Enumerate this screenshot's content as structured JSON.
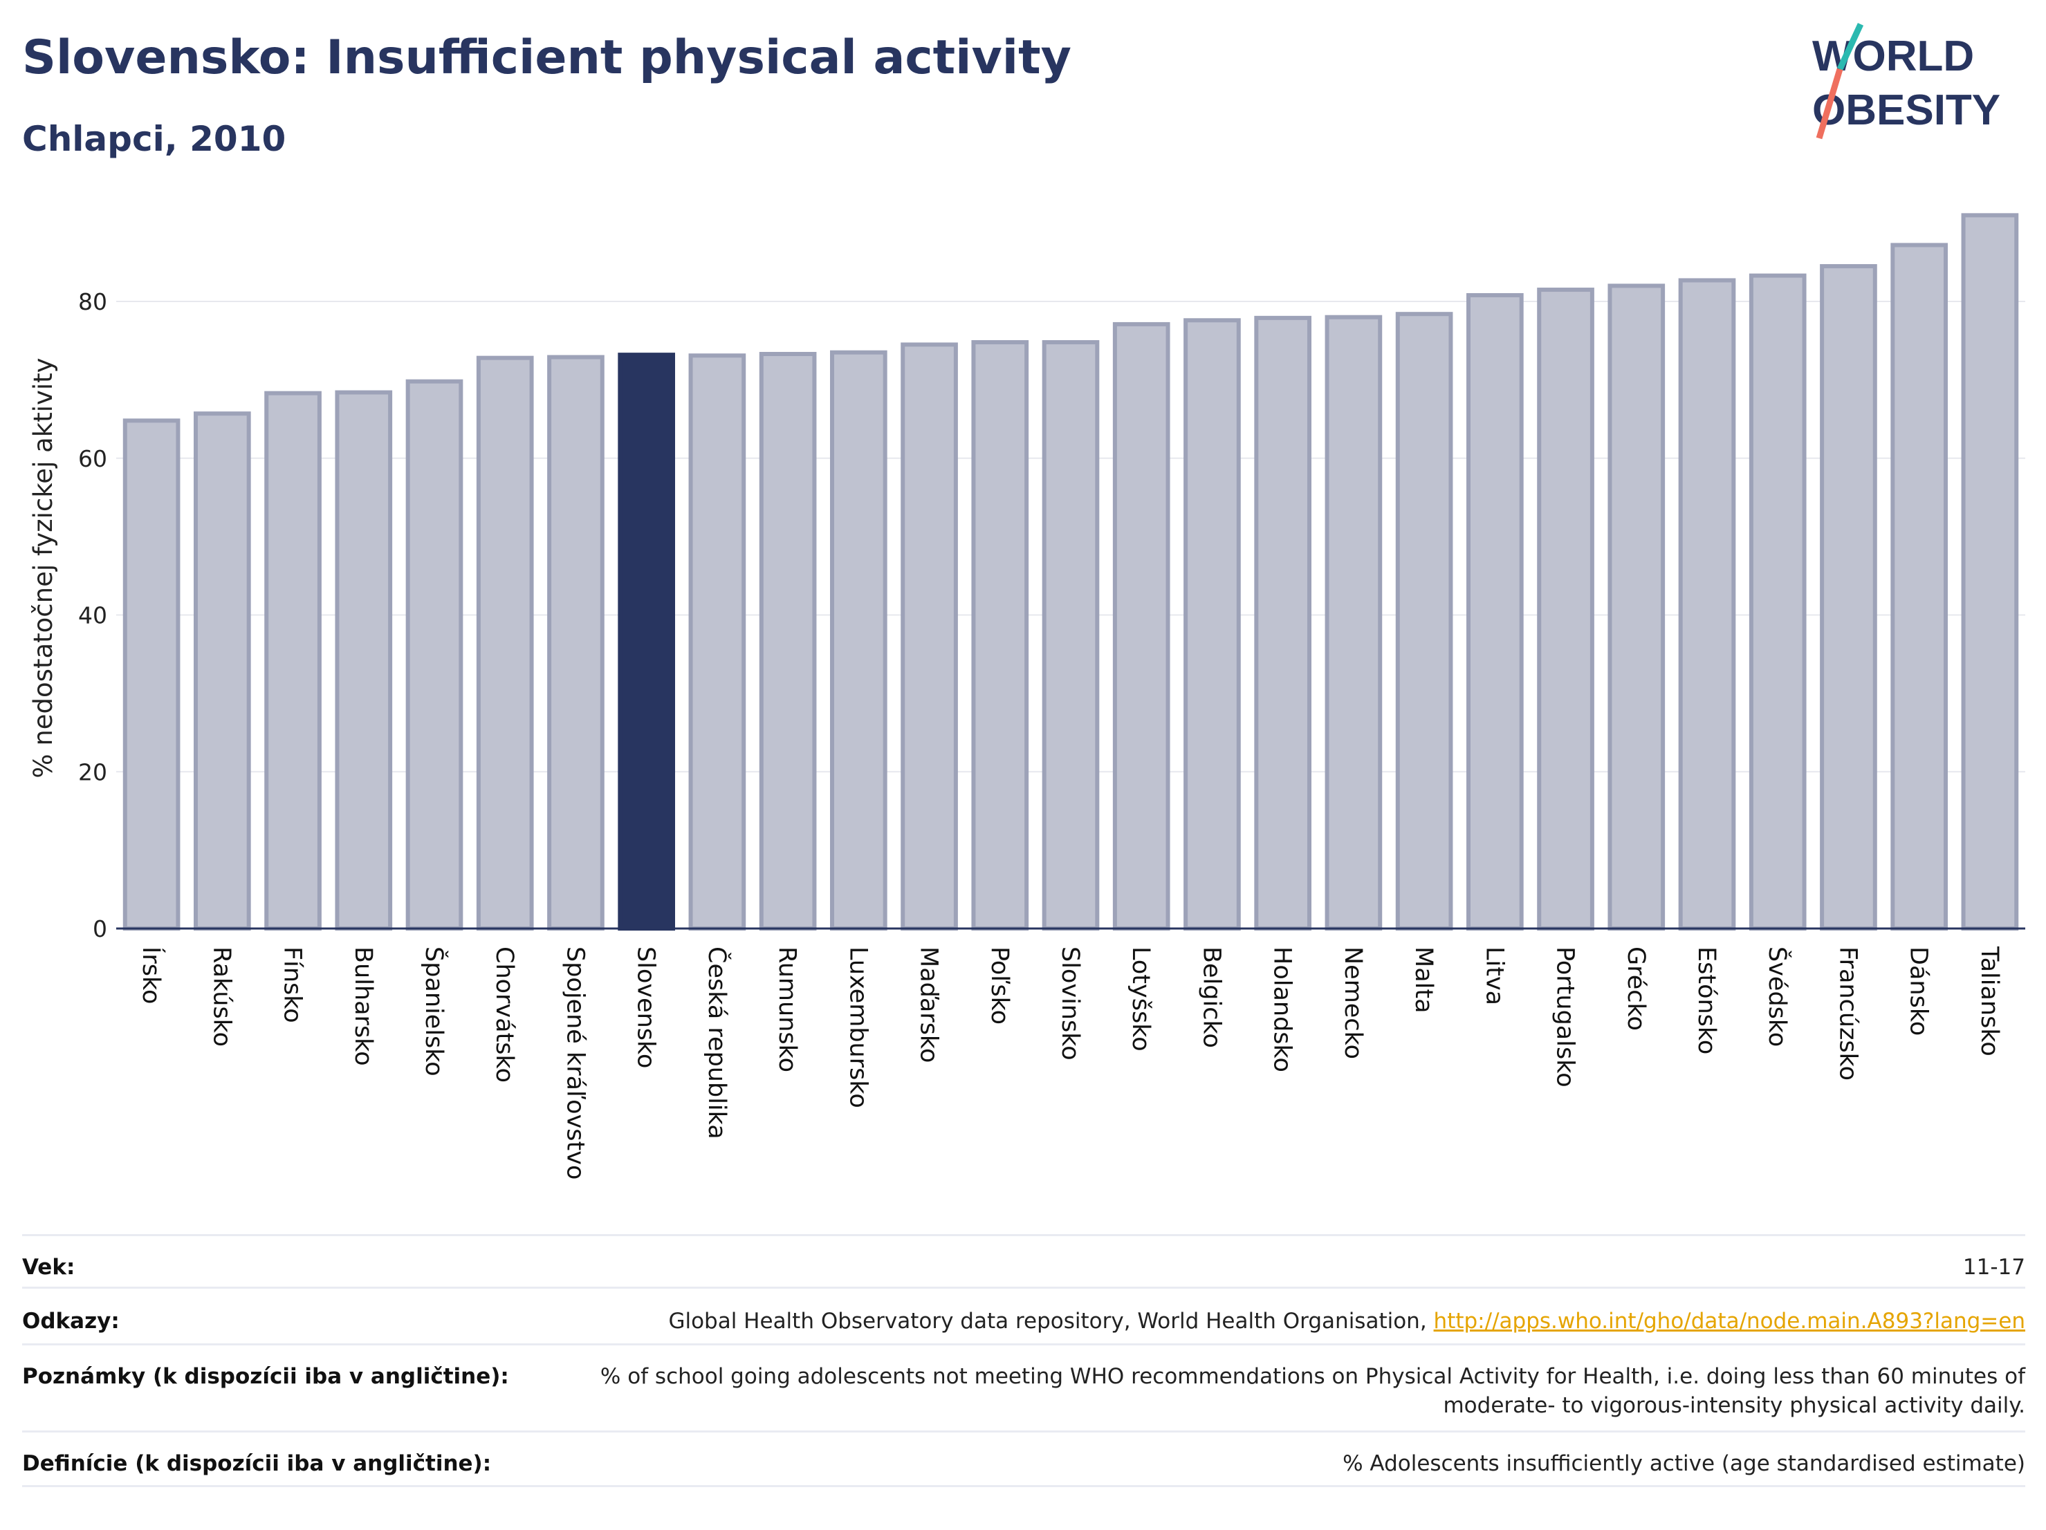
{
  "header": {
    "title": "Slovensko: Insufficient physical activity",
    "subtitle": "Chlapci, 2010"
  },
  "logo": {
    "line1": "WORLD",
    "line2": "OBESITY"
  },
  "colors": {
    "navy": "#283560",
    "bar": "#bfc2d0",
    "bar_border": "#9da2b8",
    "highlight": "#283560",
    "link": "#e5a400",
    "teal": "#2bb9b0",
    "coral": "#ef6f5e"
  },
  "chart_data": {
    "type": "bar",
    "ylabel": "% nedostatočnej fyzickej aktivity",
    "ylim": [
      0,
      92
    ],
    "yticks": [
      0,
      20,
      40,
      60,
      80
    ],
    "grid": true,
    "highlight": "Slovensko",
    "categories": [
      "Írsko",
      "Rakúsko",
      "Fínsko",
      "Bulharsko",
      "Španielsko",
      "Chorvátsko",
      "Spojené kráľovstvo",
      "Slovensko",
      "Česká republika",
      "Rumunsko",
      "Luxembursko",
      "Maďarsko",
      "Poľsko",
      "Slovinsko",
      "Lotyšsko",
      "Belgicko",
      "Holandsko",
      "Nemecko",
      "Malta",
      "Litva",
      "Portugalsko",
      "Grécko",
      "Estónsko",
      "Švédsko",
      "Francúzsko",
      "Dánsko",
      "Taliansko"
    ],
    "values": [
      64.8,
      65.7,
      68.3,
      68.4,
      69.8,
      72.8,
      72.9,
      73.2,
      73.1,
      73.3,
      73.5,
      74.5,
      74.8,
      74.8,
      77.1,
      77.6,
      77.9,
      78.0,
      78.4,
      80.8,
      81.5,
      82.0,
      82.7,
      83.3,
      84.5,
      87.2,
      91.0
    ]
  },
  "meta": {
    "age": {
      "label": "Vek:",
      "value": "11-17"
    },
    "refs": {
      "label": "Odkazy:",
      "value": "Global Health Observatory data repository, World Health Organisation, ",
      "link": "http://apps.who.int/gho/data/node.main.A893?lang=en"
    },
    "notes": {
      "label": "Poznámky (k dispozícii iba v angličtine):",
      "value": "% of school going adolescents not meeting WHO recommendations on Physical Activity for Health, i.e. doing less than 60 minutes of moderate- to vigorous-intensity physical activity daily."
    },
    "defs": {
      "label": "Definície (k dispozícii iba v angličtine):",
      "value": "% Adolescents insufficiently active (age standardised estimate)"
    }
  }
}
